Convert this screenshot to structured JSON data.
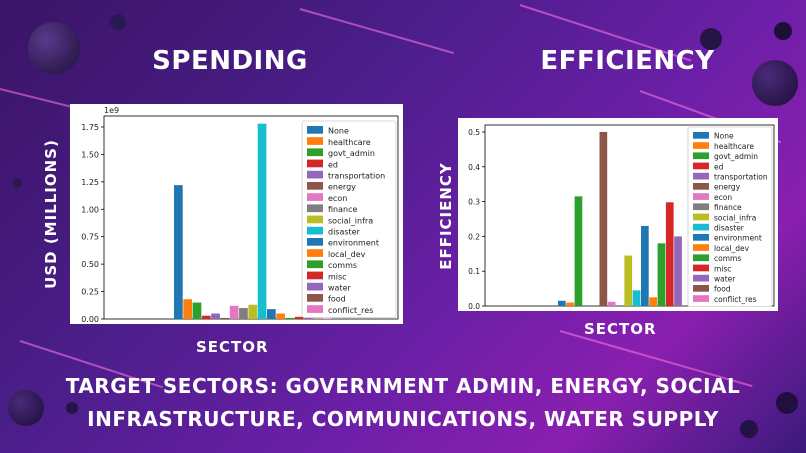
{
  "slide": {
    "left_heading": "SPENDING",
    "right_heading": "EFFICIENCY",
    "caption_line1": "TARGET SECTORS: GOVERNMENT ADMIN, ENERGY, SOCIAL",
    "caption_line2": "INFRASTRUCTURE, COMMUNICATIONS, WATER SUPPLY"
  },
  "spending_axis": {
    "ylabel": "USD (MILLIONS)",
    "xlabel": "SECTOR"
  },
  "efficiency_axis": {
    "ylabel": "EFFICIENCY",
    "xlabel": "SECTOR"
  },
  "colors": {
    "None": "#1f77b4",
    "healthcare": "#ff7f0e",
    "govt_admin": "#2ca02c",
    "ed": "#d62728",
    "transportation": "#9467bd",
    "energy": "#8c564b",
    "econ": "#e377c2",
    "finance": "#7f7f7f",
    "social_infra": "#bcbd22",
    "disaster": "#17becf",
    "environment": "#1f77b4",
    "local_dev": "#ff7f0e",
    "comms": "#2ca02c",
    "misc": "#d62728",
    "water": "#9467bd",
    "food": "#8c564b",
    "conflict_res": "#e377c2"
  },
  "chart_data": [
    {
      "type": "bar",
      "scale_label": "1e9",
      "ylim": [
        0,
        1.85
      ],
      "yticks": [
        "0.00",
        "0.25",
        "0.50",
        "0.75",
        "1.00",
        "1.25",
        "1.50",
        "1.75"
      ],
      "legend_placement": "top-right",
      "series": [
        {
          "name": "None",
          "value": 1.22
        },
        {
          "name": "healthcare",
          "value": 0.18
        },
        {
          "name": "govt_admin",
          "value": 0.15
        },
        {
          "name": "ed",
          "value": 0.03
        },
        {
          "name": "transportation",
          "value": 0.05
        },
        {
          "name": "energy",
          "value": 0.01
        },
        {
          "name": "econ",
          "value": 0.12
        },
        {
          "name": "finance",
          "value": 0.1
        },
        {
          "name": "social_infra",
          "value": 0.13
        },
        {
          "name": "disaster",
          "value": 1.78
        },
        {
          "name": "environment",
          "value": 0.09
        },
        {
          "name": "local_dev",
          "value": 0.05
        },
        {
          "name": "comms",
          "value": 0.01
        },
        {
          "name": "misc",
          "value": 0.02
        },
        {
          "name": "water",
          "value": 0.01
        },
        {
          "name": "food",
          "value": 0.005
        },
        {
          "name": "conflict_res",
          "value": 0.005
        }
      ]
    },
    {
      "type": "bar",
      "ylim": [
        0,
        0.52
      ],
      "yticks": [
        "0.0",
        "0.1",
        "0.2",
        "0.3",
        "0.4",
        "0.5"
      ],
      "legend_placement": "top-right",
      "series": [
        {
          "name": "None",
          "value": 0.015
        },
        {
          "name": "healthcare",
          "value": 0.01
        },
        {
          "name": "govt_admin",
          "value": 0.315
        },
        {
          "name": "ed",
          "value": 0.0
        },
        {
          "name": "transportation",
          "value": 0.0
        },
        {
          "name": "energy",
          "value": 0.5
        },
        {
          "name": "econ",
          "value": 0.012
        },
        {
          "name": "finance",
          "value": 0.0
        },
        {
          "name": "social_infra",
          "value": 0.145
        },
        {
          "name": "disaster",
          "value": 0.045
        },
        {
          "name": "environment",
          "value": 0.23
        },
        {
          "name": "local_dev",
          "value": 0.025
        },
        {
          "name": "comms",
          "value": 0.18
        },
        {
          "name": "misc",
          "value": 0.298
        },
        {
          "name": "water",
          "value": 0.2
        },
        {
          "name": "food",
          "value": 0.0
        },
        {
          "name": "conflict_res",
          "value": 0.0
        }
      ]
    }
  ]
}
